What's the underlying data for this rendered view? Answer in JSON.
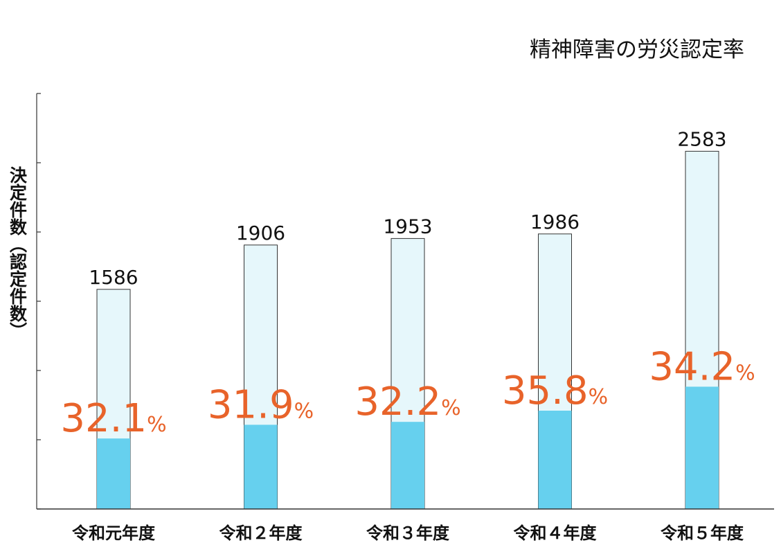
{
  "chart_data": {
    "type": "bar",
    "title": "精神障害の労災認定率",
    "y_label": "決定件数（認定件数）",
    "categories": [
      "令和元年度",
      "令和２年度",
      "令和３年度",
      "令和４年度",
      "令和５年度"
    ],
    "series": [
      {
        "color": "#e6f7fb",
        "values": [
          1586,
          1906,
          1953,
          1986,
          2583
        ]
      },
      {
        "color": "#66d0ee",
        "values": [
          509,
          608,
          629,
          710,
          883
        ]
      }
    ],
    "rates": {
      "color": "#e8632a",
      "values": [
        32.1,
        31.9,
        32.2,
        35.8,
        34.2
      ],
      "value_labels": [
        "32.1%",
        "31.9%",
        "32.2%",
        "35.8%",
        "34.2%"
      ]
    },
    "ylim": [
      0,
      3000
    ],
    "yticks": [
      0,
      500,
      1000,
      1500,
      2000,
      2500,
      3000
    ]
  }
}
